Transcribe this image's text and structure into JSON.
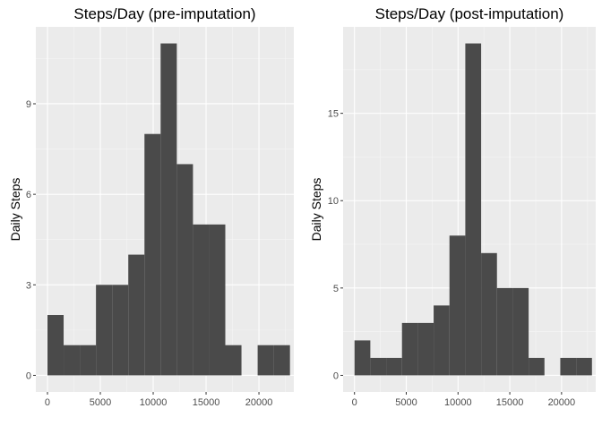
{
  "chart_data": [
    {
      "type": "bar",
      "title": "Steps/Day (pre-imputation)",
      "xlabel": "",
      "ylabel": "Daily Steps",
      "xlim": [
        -1100,
        23300
      ],
      "ylim": [
        -0.55,
        11.55
      ],
      "x_ticks": [
        0,
        5000,
        10000,
        15000,
        20000
      ],
      "x_tick_labels": [
        "0",
        "5000",
        "10000",
        "15000",
        "20000"
      ],
      "y_ticks": [
        0,
        3,
        6,
        9
      ],
      "y_tick_labels": [
        "0",
        "3",
        "6",
        "9"
      ],
      "bin_width": 1529,
      "bins": [
        {
          "x0": 0,
          "x1": 1529,
          "count": 2
        },
        {
          "x0": 1529,
          "x1": 3058,
          "count": 1
        },
        {
          "x0": 3058,
          "x1": 4587,
          "count": 1
        },
        {
          "x0": 4587,
          "x1": 6116,
          "count": 3
        },
        {
          "x0": 6116,
          "x1": 7645,
          "count": 3
        },
        {
          "x0": 7645,
          "x1": 9174,
          "count": 4
        },
        {
          "x0": 9174,
          "x1": 10703,
          "count": 8
        },
        {
          "x0": 10703,
          "x1": 12232,
          "count": 11
        },
        {
          "x0": 12232,
          "x1": 13761,
          "count": 7
        },
        {
          "x0": 13761,
          "x1": 15290,
          "count": 5
        },
        {
          "x0": 15290,
          "x1": 16819,
          "count": 5
        },
        {
          "x0": 16819,
          "x1": 18348,
          "count": 1
        },
        {
          "x0": 18348,
          "x1": 19877,
          "count": 0
        },
        {
          "x0": 19877,
          "x1": 21406,
          "count": 1
        },
        {
          "x0": 21406,
          "x1": 22935,
          "count": 1
        }
      ],
      "bar_color": "#4a4a4a",
      "panel_color": "#ebebeb",
      "grid": true
    },
    {
      "type": "bar",
      "title": "Steps/Day (post-imputation)",
      "xlabel": "",
      "ylabel": "Daily Steps",
      "xlim": [
        -1100,
        23300
      ],
      "ylim": [
        -0.95,
        19.95
      ],
      "x_ticks": [
        0,
        5000,
        10000,
        15000,
        20000
      ],
      "x_tick_labels": [
        "0",
        "5000",
        "10000",
        "15000",
        "20000"
      ],
      "y_ticks": [
        0,
        5,
        10,
        15
      ],
      "y_tick_labels": [
        "0",
        "5",
        "10",
        "15"
      ],
      "bin_width": 1529,
      "bins": [
        {
          "x0": 0,
          "x1": 1529,
          "count": 2
        },
        {
          "x0": 1529,
          "x1": 3058,
          "count": 1
        },
        {
          "x0": 3058,
          "x1": 4587,
          "count": 1
        },
        {
          "x0": 4587,
          "x1": 6116,
          "count": 3
        },
        {
          "x0": 6116,
          "x1": 7645,
          "count": 3
        },
        {
          "x0": 7645,
          "x1": 9174,
          "count": 4
        },
        {
          "x0": 9174,
          "x1": 10703,
          "count": 8
        },
        {
          "x0": 10703,
          "x1": 12232,
          "count": 19
        },
        {
          "x0": 12232,
          "x1": 13761,
          "count": 7
        },
        {
          "x0": 13761,
          "x1": 15290,
          "count": 5
        },
        {
          "x0": 15290,
          "x1": 16819,
          "count": 5
        },
        {
          "x0": 16819,
          "x1": 18348,
          "count": 1
        },
        {
          "x0": 18348,
          "x1": 19877,
          "count": 0
        },
        {
          "x0": 19877,
          "x1": 21406,
          "count": 1
        },
        {
          "x0": 21406,
          "x1": 22935,
          "count": 1
        }
      ],
      "bar_color": "#4a4a4a",
      "panel_color": "#ebebeb",
      "grid": true
    }
  ]
}
